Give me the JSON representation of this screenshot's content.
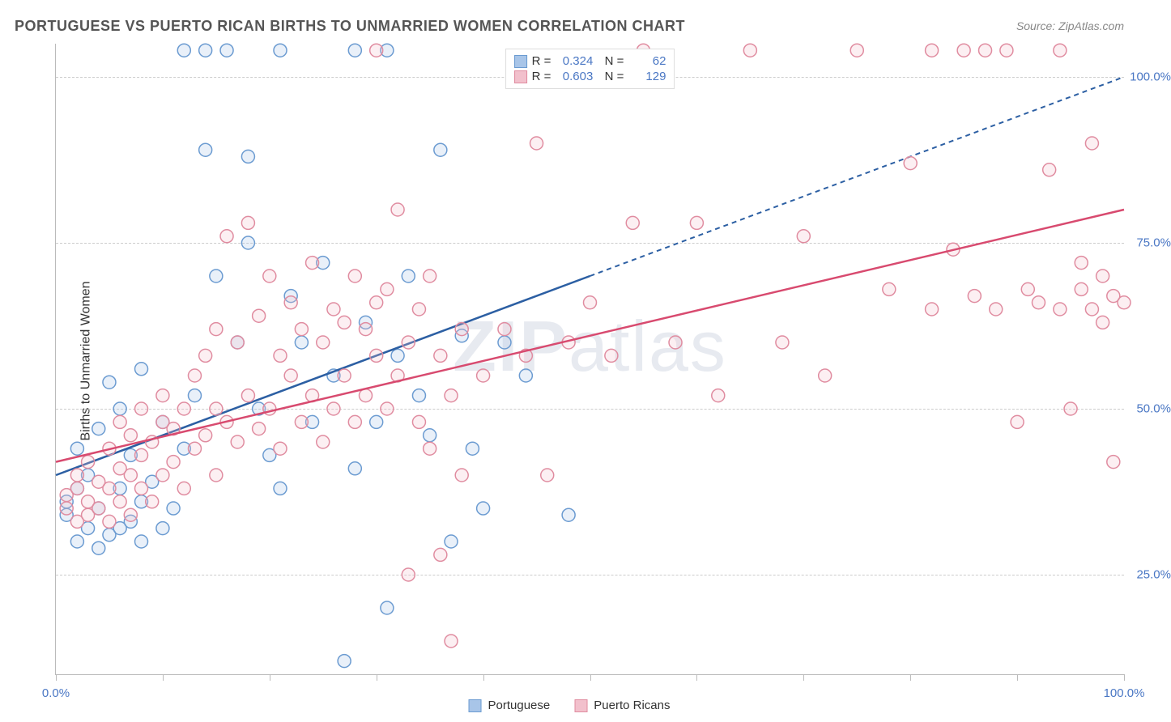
{
  "header": {
    "title": "PORTUGUESE VS PUERTO RICAN BIRTHS TO UNMARRIED WOMEN CORRELATION CHART",
    "source": "Source: ZipAtlas.com"
  },
  "chart": {
    "type": "scatter",
    "ylabel": "Births to Unmarried Women",
    "xlim": [
      0,
      100
    ],
    "ylim": [
      10,
      105
    ],
    "x_ticks": [
      0,
      10,
      20,
      30,
      40,
      50,
      60,
      70,
      80,
      90,
      100
    ],
    "x_tick_labels": {
      "0": "0.0%",
      "100": "100.0%"
    },
    "y_gridlines": [
      25,
      50,
      75,
      100
    ],
    "y_tick_labels": {
      "25": "25.0%",
      "50": "50.0%",
      "75": "75.0%",
      "100": "100.0%"
    },
    "background_color": "#ffffff",
    "grid_color": "#cccccc",
    "axis_color": "#bbbbbb",
    "tick_label_color": "#4a77c4",
    "marker_radius": 8,
    "marker_stroke_width": 1.5,
    "marker_fill_opacity": 0.25,
    "trend_line_width": 2.5,
    "trend_dash": "6,5",
    "watermark": "ZIPatlas",
    "series": [
      {
        "name": "Portuguese",
        "color_stroke": "#6b9bd1",
        "color_fill": "#a8c5e8",
        "trend_color": "#2c5fa3",
        "R": "0.324",
        "N": "62",
        "trend": {
          "x1": 0,
          "y1": 40,
          "x2": 50,
          "y2": 70,
          "extend_x2": 100,
          "extend_y2": 100
        },
        "points": [
          [
            1,
            34
          ],
          [
            1,
            36
          ],
          [
            2,
            30
          ],
          [
            2,
            38
          ],
          [
            2,
            44
          ],
          [
            3,
            32
          ],
          [
            3,
            40
          ],
          [
            4,
            29
          ],
          [
            4,
            35
          ],
          [
            4,
            47
          ],
          [
            5,
            31
          ],
          [
            5,
            54
          ],
          [
            6,
            32
          ],
          [
            6,
            38
          ],
          [
            6,
            50
          ],
          [
            7,
            33
          ],
          [
            7,
            43
          ],
          [
            8,
            30
          ],
          [
            8,
            36
          ],
          [
            8,
            56
          ],
          [
            9,
            39
          ],
          [
            10,
            32
          ],
          [
            10,
            48
          ],
          [
            11,
            35
          ],
          [
            12,
            44
          ],
          [
            12,
            104
          ],
          [
            13,
            52
          ],
          [
            14,
            89
          ],
          [
            14,
            104
          ],
          [
            15,
            70
          ],
          [
            16,
            104
          ],
          [
            17,
            60
          ],
          [
            18,
            88
          ],
          [
            18,
            75
          ],
          [
            19,
            50
          ],
          [
            20,
            43
          ],
          [
            21,
            38
          ],
          [
            21,
            104
          ],
          [
            22,
            67
          ],
          [
            23,
            60
          ],
          [
            24,
            48
          ],
          [
            25,
            72
          ],
          [
            26,
            55
          ],
          [
            27,
            12
          ],
          [
            28,
            41
          ],
          [
            28,
            104
          ],
          [
            29,
            63
          ],
          [
            30,
            48
          ],
          [
            31,
            20
          ],
          [
            31,
            104
          ],
          [
            32,
            58
          ],
          [
            33,
            70
          ],
          [
            34,
            52
          ],
          [
            35,
            46
          ],
          [
            36,
            89
          ],
          [
            37,
            30
          ],
          [
            38,
            61
          ],
          [
            39,
            44
          ],
          [
            40,
            35
          ],
          [
            42,
            60
          ],
          [
            44,
            55
          ],
          [
            48,
            34
          ]
        ]
      },
      {
        "name": "Puerto Ricans",
        "color_stroke": "#e08ca0",
        "color_fill": "#f2c0cc",
        "trend_color": "#d84a6f",
        "R": "0.603",
        "N": "129",
        "trend": {
          "x1": 0,
          "y1": 42,
          "x2": 100,
          "y2": 80
        },
        "points": [
          [
            1,
            35
          ],
          [
            1,
            37
          ],
          [
            2,
            33
          ],
          [
            2,
            38
          ],
          [
            2,
            40
          ],
          [
            3,
            34
          ],
          [
            3,
            36
          ],
          [
            3,
            42
          ],
          [
            4,
            35
          ],
          [
            4,
            39
          ],
          [
            5,
            33
          ],
          [
            5,
            38
          ],
          [
            5,
            44
          ],
          [
            6,
            36
          ],
          [
            6,
            41
          ],
          [
            6,
            48
          ],
          [
            7,
            34
          ],
          [
            7,
            40
          ],
          [
            7,
            46
          ],
          [
            8,
            38
          ],
          [
            8,
            43
          ],
          [
            8,
            50
          ],
          [
            9,
            36
          ],
          [
            9,
            45
          ],
          [
            10,
            40
          ],
          [
            10,
            48
          ],
          [
            10,
            52
          ],
          [
            11,
            42
          ],
          [
            11,
            47
          ],
          [
            12,
            38
          ],
          [
            12,
            50
          ],
          [
            13,
            44
          ],
          [
            13,
            55
          ],
          [
            14,
            46
          ],
          [
            14,
            58
          ],
          [
            15,
            40
          ],
          [
            15,
            50
          ],
          [
            15,
            62
          ],
          [
            16,
            48
          ],
          [
            16,
            76
          ],
          [
            17,
            45
          ],
          [
            17,
            60
          ],
          [
            18,
            52
          ],
          [
            18,
            78
          ],
          [
            19,
            47
          ],
          [
            19,
            64
          ],
          [
            20,
            50
          ],
          [
            20,
            70
          ],
          [
            21,
            44
          ],
          [
            21,
            58
          ],
          [
            22,
            55
          ],
          [
            22,
            66
          ],
          [
            23,
            48
          ],
          [
            23,
            62
          ],
          [
            24,
            52
          ],
          [
            24,
            72
          ],
          [
            25,
            45
          ],
          [
            25,
            60
          ],
          [
            26,
            50
          ],
          [
            26,
            65
          ],
          [
            27,
            55
          ],
          [
            27,
            63
          ],
          [
            28,
            48
          ],
          [
            28,
            70
          ],
          [
            29,
            52
          ],
          [
            29,
            62
          ],
          [
            30,
            58
          ],
          [
            30,
            66
          ],
          [
            30,
            104
          ],
          [
            31,
            50
          ],
          [
            31,
            68
          ],
          [
            32,
            55
          ],
          [
            32,
            80
          ],
          [
            33,
            25
          ],
          [
            33,
            60
          ],
          [
            34,
            48
          ],
          [
            34,
            65
          ],
          [
            35,
            44
          ],
          [
            35,
            70
          ],
          [
            36,
            28
          ],
          [
            36,
            58
          ],
          [
            37,
            52
          ],
          [
            37,
            15
          ],
          [
            38,
            40
          ],
          [
            38,
            62
          ],
          [
            40,
            55
          ],
          [
            42,
            62
          ],
          [
            44,
            58
          ],
          [
            45,
            90
          ],
          [
            46,
            40
          ],
          [
            48,
            60
          ],
          [
            50,
            66
          ],
          [
            52,
            58
          ],
          [
            54,
            78
          ],
          [
            55,
            104
          ],
          [
            58,
            60
          ],
          [
            60,
            78
          ],
          [
            62,
            52
          ],
          [
            65,
            104
          ],
          [
            68,
            60
          ],
          [
            70,
            76
          ],
          [
            72,
            55
          ],
          [
            75,
            104
          ],
          [
            78,
            68
          ],
          [
            80,
            87
          ],
          [
            82,
            65
          ],
          [
            82,
            104
          ],
          [
            84,
            74
          ],
          [
            85,
            104
          ],
          [
            86,
            67
          ],
          [
            87,
            104
          ],
          [
            88,
            65
          ],
          [
            89,
            104
          ],
          [
            90,
            48
          ],
          [
            91,
            68
          ],
          [
            92,
            66
          ],
          [
            93,
            86
          ],
          [
            94,
            65
          ],
          [
            94,
            104
          ],
          [
            95,
            50
          ],
          [
            96,
            68
          ],
          [
            96,
            72
          ],
          [
            97,
            65
          ],
          [
            97,
            90
          ],
          [
            98,
            63
          ],
          [
            98,
            70
          ],
          [
            99,
            42
          ],
          [
            99,
            67
          ],
          [
            100,
            66
          ]
        ]
      }
    ]
  },
  "legend_bottom": [
    {
      "label": "Portuguese",
      "stroke": "#6b9bd1",
      "fill": "#a8c5e8"
    },
    {
      "label": "Puerto Ricans",
      "stroke": "#e08ca0",
      "fill": "#f2c0cc"
    }
  ]
}
